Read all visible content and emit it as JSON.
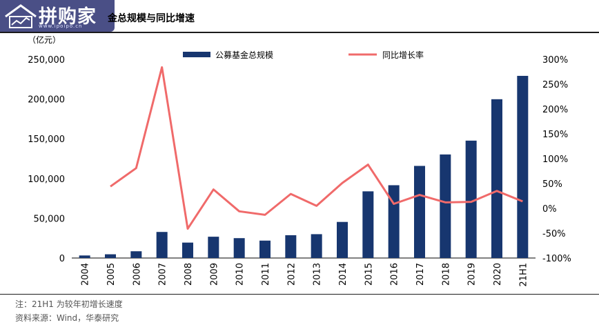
{
  "header": {
    "logo_text": "拼购家",
    "logo_url": "www.ipoipo.cn",
    "title": "金总规模与同比增速"
  },
  "chart_data": {
    "type": "bar",
    "categories": [
      "2004",
      "2005",
      "2006",
      "2007",
      "2008",
      "2009",
      "2010",
      "2011",
      "2012",
      "2013",
      "2014",
      "2015",
      "2016",
      "2017",
      "2018",
      "2019",
      "2020",
      "21H1"
    ],
    "series": [
      {
        "name": "公募基金总规模",
        "type": "bar",
        "axis": "left",
        "color": "#17366f",
        "values": [
          3200,
          4700,
          8500,
          32800,
          19400,
          26800,
          25000,
          21900,
          28700,
          30000,
          45400,
          83900,
          91600,
          115900,
          130300,
          147700,
          199800,
          229200
        ]
      },
      {
        "name": "同比增长率",
        "type": "line",
        "axis": "right",
        "color": "#f06a6a",
        "values": [
          null,
          44,
          81,
          284,
          -41,
          38,
          -6,
          -13,
          29,
          5,
          51,
          88,
          9,
          27,
          12,
          13,
          35,
          14
        ]
      }
    ],
    "y_left": {
      "label": "（亿元）",
      "min": 0,
      "max": 250000,
      "ticks": [
        "0",
        "50,000",
        "100,000",
        "150,000",
        "200,000",
        "250,000"
      ]
    },
    "y_right": {
      "min": -100,
      "max": 300,
      "ticks": [
        "-100%",
        "-50%",
        "0%",
        "50%",
        "100%",
        "150%",
        "200%",
        "250%",
        "300%"
      ]
    },
    "legend_position": "top"
  },
  "footer": {
    "note": "注：21H1 为较年初增长速度",
    "source": "资料来源：Wind，华泰研究"
  }
}
